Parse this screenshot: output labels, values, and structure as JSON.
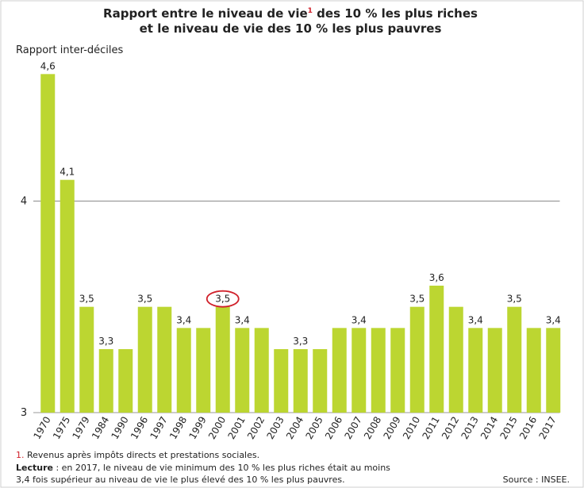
{
  "chart_data": {
    "type": "bar",
    "title": [
      "Rapport entre le niveau de vie",
      "1",
      " des 10 % les plus riches",
      "et le niveau de vie des 10 % les plus pauvres"
    ],
    "ylabel": "Rapport inter-déciles",
    "categories": [
      "1970",
      "1975",
      "1979",
      "1984",
      "1990",
      "1996",
      "1997",
      "1998",
      "1999",
      "2000",
      "2001",
      "2002",
      "2003",
      "2004",
      "2005",
      "2006",
      "2007",
      "2008",
      "2009",
      "2010",
      "2011",
      "2012",
      "2013",
      "2014",
      "2015",
      "2016",
      "2017"
    ],
    "values": [
      4.6,
      4.1,
      3.5,
      3.3,
      3.3,
      3.5,
      3.5,
      3.4,
      3.4,
      3.5,
      3.4,
      3.4,
      3.3,
      3.3,
      3.3,
      3.4,
      3.4,
      3.4,
      3.4,
      3.5,
      3.6,
      3.5,
      3.4,
      3.4,
      3.5,
      3.4,
      3.4
    ],
    "value_labels": [
      "4,6",
      "4,1",
      "3,5",
      "3,3",
      null,
      "3,5",
      null,
      "3,4",
      null,
      "3,5",
      "3,4",
      null,
      null,
      "3,3",
      null,
      null,
      "3,4",
      null,
      null,
      "3,5",
      "3,6",
      null,
      "3,4",
      null,
      "3,5",
      null,
      "3,4"
    ],
    "highlight": 9,
    "color": "#bcd631",
    "ylim": [
      3,
      4.65
    ],
    "yticks": [
      3,
      4
    ],
    "grid": true,
    "footnote": [
      "1.",
      " Revenus après impôts directs et prestations sociales."
    ],
    "note": [
      "Lecture",
      " : en 2017, le niveau de vie minimum des 10 % les plus riches était au moins",
      "3,4 fois supérieur au niveau de vie le plus élevé des 10 % les plus pauvres."
    ],
    "source": "Source : INSEE."
  }
}
